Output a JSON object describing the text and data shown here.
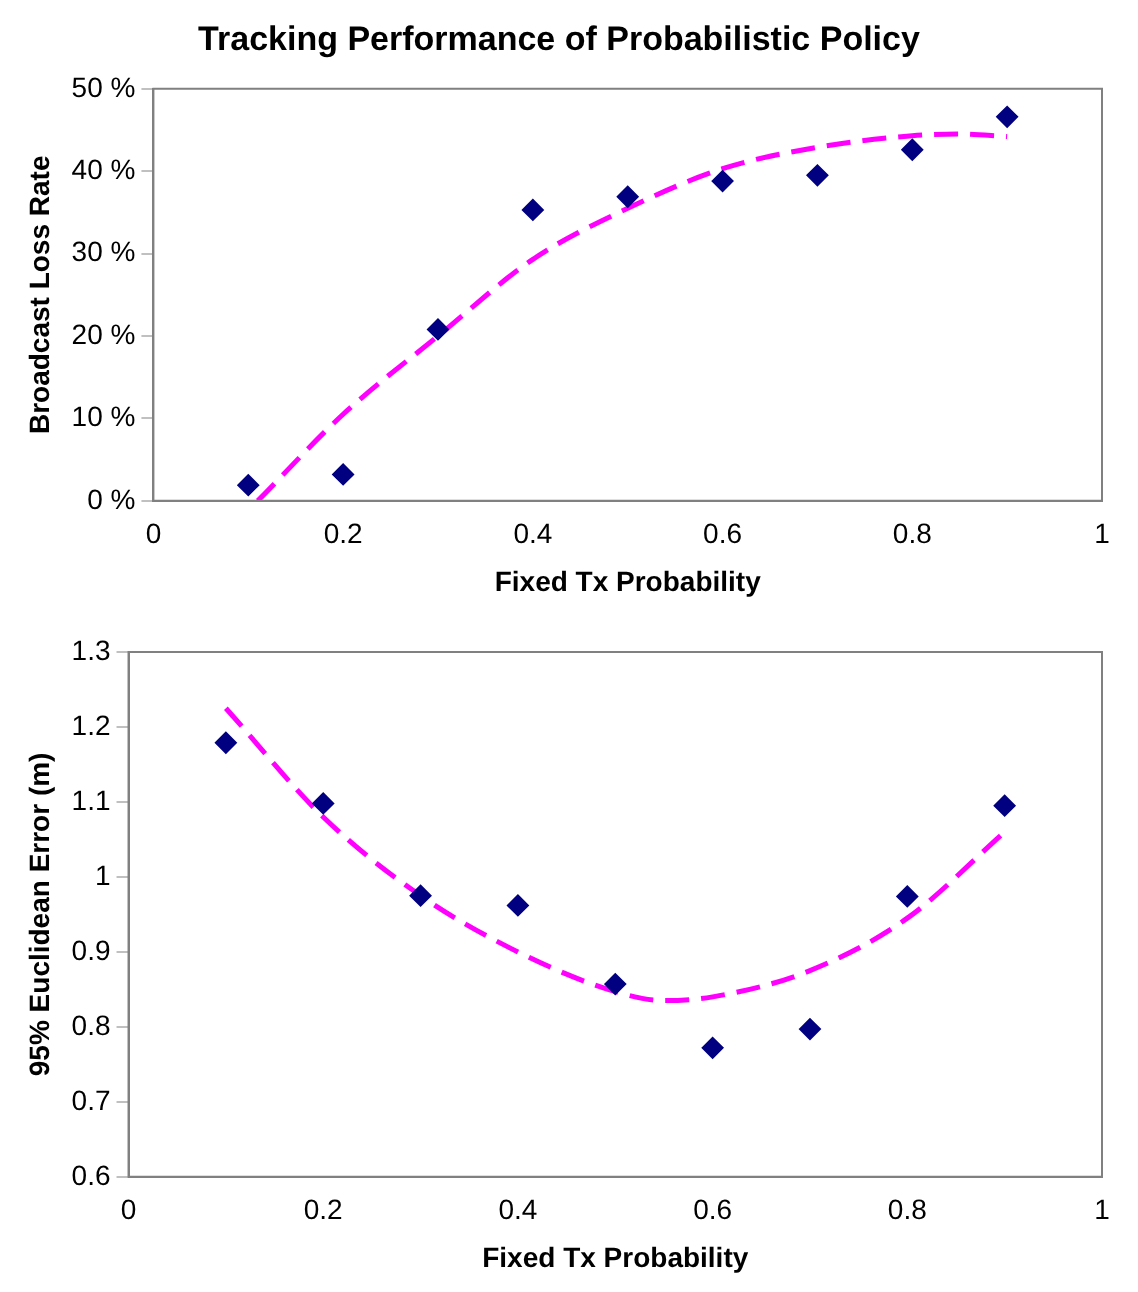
{
  "chart_data": [
    {
      "type": "scatter",
      "title": "Tracking Performance of Probabilistic Policy",
      "xlabel": "Fixed Tx Probability",
      "ylabel": "Broadcast Loss Rate",
      "xlim": [
        0,
        1
      ],
      "xticks": [
        0,
        0.2,
        0.4,
        0.6,
        0.8,
        1
      ],
      "ylim": [
        0,
        50
      ],
      "yticks": [
        {
          "value": 0,
          "label": "0 %"
        },
        {
          "value": 10,
          "label": "10 %"
        },
        {
          "value": 20,
          "label": "20 %"
        },
        {
          "value": 30,
          "label": "30 %"
        },
        {
          "value": 40,
          "label": "40 %"
        },
        {
          "value": 50,
          "label": "50 %"
        }
      ],
      "grid": false,
      "legend": false,
      "series": [
        {
          "type": "scatter",
          "color": "#000080",
          "marker": "diamond",
          "x": [
            0.1,
            0.2,
            0.3,
            0.4,
            0.5,
            0.6,
            0.7,
            0.8,
            0.9
          ],
          "values": [
            1.9,
            3.2,
            20.8,
            35.3,
            36.9,
            38.8,
            39.5,
            42.6,
            46.6
          ]
        },
        {
          "type": "line",
          "color": "#ff00ff",
          "marker": "none",
          "line_style": "dashed",
          "x": [
            0.11,
            0.2,
            0.3,
            0.4,
            0.5,
            0.6,
            0.7,
            0.8,
            0.85,
            0.9
          ],
          "values": [
            0,
            10.5,
            20,
            29.3,
            35.5,
            40.3,
            42.9,
            44.3,
            44.5,
            44.2
          ]
        }
      ]
    },
    {
      "type": "scatter",
      "xlabel": "Fixed Tx Probability",
      "ylabel": "95% Euclidean Error (m)",
      "xlim": [
        0,
        1
      ],
      "xticks": [
        0,
        0.2,
        0.4,
        0.6,
        0.8,
        1
      ],
      "ylim": [
        0.6,
        1.3
      ],
      "yticks": [
        0.6,
        0.7,
        0.8,
        0.9,
        1,
        1.1,
        1.2,
        1.3
      ],
      "grid": false,
      "legend": false,
      "series": [
        {
          "type": "scatter",
          "color": "#000080",
          "marker": "diamond",
          "x": [
            0.1,
            0.2,
            0.3,
            0.4,
            0.5,
            0.6,
            0.7,
            0.8,
            0.9
          ],
          "values": [
            1.179,
            1.098,
            0.975,
            0.962,
            0.857,
            0.772,
            0.797,
            0.974,
            1.095
          ]
        },
        {
          "type": "line",
          "color": "#ff00ff",
          "marker": "none",
          "line_style": "dashed",
          "x": [
            0.1,
            0.2,
            0.3,
            0.4,
            0.5,
            0.55,
            0.6,
            0.7,
            0.8,
            0.9
          ],
          "values": [
            1.225,
            1.08,
            0.975,
            0.9,
            0.847,
            0.835,
            0.84,
            0.875,
            0.945,
            1.06
          ]
        }
      ]
    }
  ]
}
